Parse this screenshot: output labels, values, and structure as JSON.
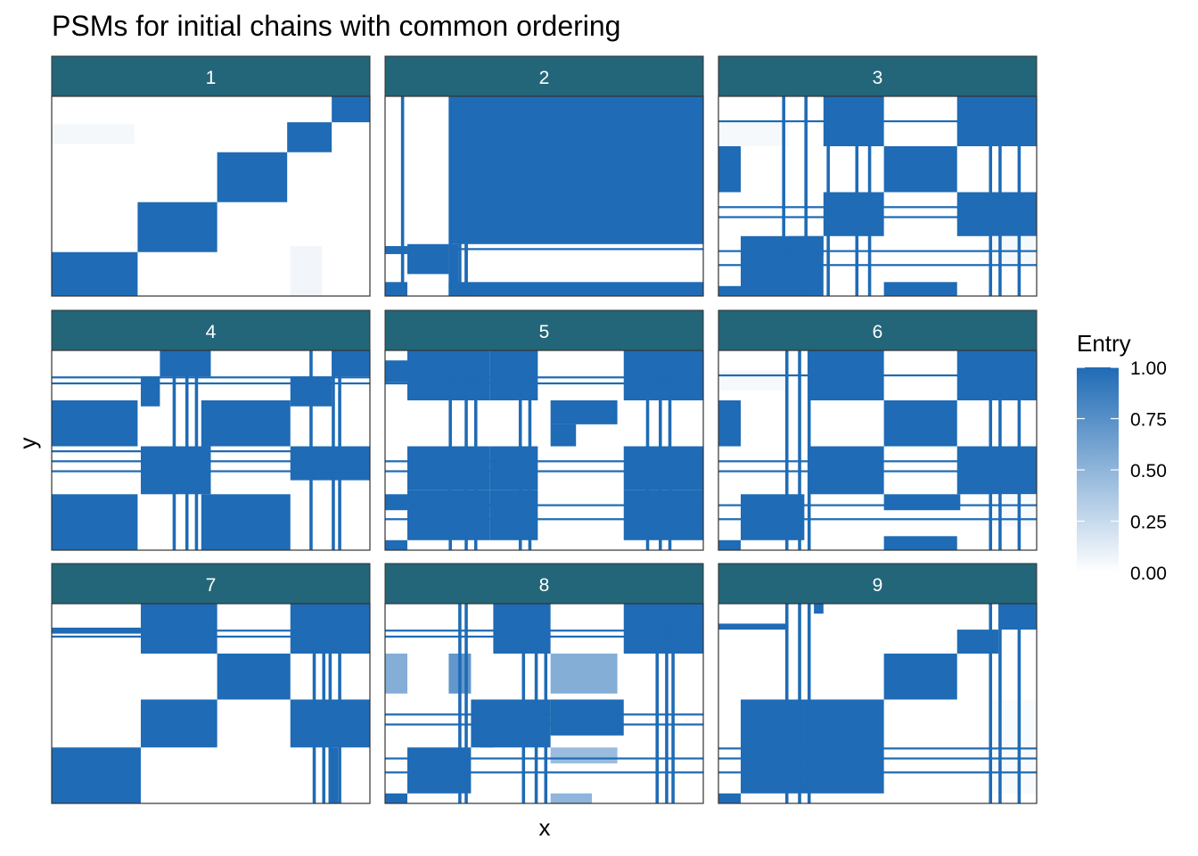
{
  "chart_data": {
    "type": "heatmap",
    "title": "PSMs for initial chains with common ordering",
    "xlabel": "x",
    "ylabel": "y",
    "legend": {
      "title": "Entry",
      "placement": "right",
      "ticks": [
        "0.00",
        "0.25",
        "0.50",
        "0.75",
        "1.00"
      ],
      "tick_values": [
        0,
        0.25,
        0.5,
        0.75,
        1
      ],
      "low_color": "#ffffff",
      "high_color": "#1f6bb5"
    },
    "strip_color": "#236679",
    "fill_low": "#ffffff",
    "fill_high": "#1f6bb5",
    "domain": [
      0,
      1
    ],
    "facet_grid": [
      3,
      3
    ],
    "facets": [
      {
        "label": "1",
        "blocks": [
          [
            0,
            0.78,
            0.27,
            1,
            1
          ],
          [
            0.27,
            0.53,
            0.52,
            0.78,
            1
          ],
          [
            0.52,
            0.28,
            0.74,
            0.53,
            1
          ],
          [
            0.74,
            0.13,
            0.88,
            0.28,
            1
          ],
          [
            0.88,
            0,
            1,
            0.13,
            1
          ],
          [
            0,
            0.14,
            0.26,
            0.24,
            0.05
          ],
          [
            0.75,
            0.75,
            0.85,
            1,
            0.06
          ]
        ]
      },
      {
        "label": "2",
        "blocks": [
          [
            0.07,
            0,
            1,
            0.74,
            1
          ],
          [
            0.07,
            0.76,
            1,
            0.77,
            1
          ],
          [
            0.07,
            0.93,
            1,
            1,
            1
          ],
          [
            0.07,
            0,
            0.2,
            1,
            0
          ],
          [
            0,
            0.75,
            0.07,
            0.79,
            1
          ],
          [
            0,
            0.93,
            0.07,
            1,
            1
          ],
          [
            0.07,
            0.74,
            0.2,
            0.89,
            1
          ],
          [
            0.2,
            0.74,
            0.23,
            1,
            1
          ],
          [
            0.25,
            0.74,
            0.26,
            1,
            1
          ]
        ]
      },
      {
        "label": "3",
        "blocks": [
          [
            0.33,
            0,
            0.52,
            0.25,
            1
          ],
          [
            0.75,
            0,
            1,
            0.25,
            1
          ],
          [
            0,
            0.25,
            0.07,
            0.48,
            1
          ],
          [
            0.52,
            0.25,
            0.75,
            0.48,
            1
          ],
          [
            0.33,
            0.48,
            0.52,
            0.7,
            1
          ],
          [
            0.75,
            0.48,
            1,
            0.7,
            1
          ],
          [
            0.07,
            0.7,
            0.33,
            1,
            1
          ],
          [
            0.52,
            0.93,
            0.75,
            1,
            1
          ],
          [
            0,
            0.95,
            0.07,
            1,
            1
          ],
          [
            0,
            0.12,
            0.22,
            0.25,
            0.04
          ],
          [
            0.22,
            0.7,
            0.33,
            0.8,
            1
          ],
          [
            0.85,
            0.7,
            1,
            0.85,
            0.04
          ]
        ]
      },
      {
        "label": "4",
        "blocks": [
          [
            0,
            0.25,
            0.27,
            0.48,
            1
          ],
          [
            0.47,
            0.25,
            0.75,
            0.48,
            1
          ],
          [
            0,
            0.72,
            0.27,
            1,
            1
          ],
          [
            0.47,
            0.72,
            0.75,
            1,
            1
          ],
          [
            0.34,
            0,
            0.5,
            0.13,
            1
          ],
          [
            0.88,
            0,
            1,
            0.13,
            1
          ],
          [
            0.28,
            0.13,
            0.34,
            0.28,
            1
          ],
          [
            0.75,
            0.13,
            0.88,
            0.28,
            1
          ],
          [
            0.28,
            0.48,
            0.5,
            0.72,
            1
          ],
          [
            0.75,
            0.48,
            1,
            0.65,
            1
          ]
        ]
      },
      {
        "label": "5",
        "blocks": [
          [
            0.07,
            0,
            0.33,
            0.25,
            1
          ],
          [
            0.33,
            0,
            0.48,
            0.25,
            1
          ],
          [
            0.75,
            0,
            1,
            0.25,
            1
          ],
          [
            0.07,
            0.48,
            0.33,
            0.7,
            1
          ],
          [
            0.33,
            0.48,
            0.48,
            0.7,
            1
          ],
          [
            0.75,
            0.48,
            1,
            0.7,
            1
          ],
          [
            0.07,
            0.7,
            0.33,
            0.95,
            1
          ],
          [
            0.33,
            0.7,
            0.48,
            0.95,
            1
          ],
          [
            0.75,
            0.7,
            1,
            0.95,
            1
          ],
          [
            0,
            0.95,
            0.07,
            1,
            1
          ],
          [
            0.52,
            0.25,
            0.73,
            0.37,
            1
          ],
          [
            0.52,
            0.37,
            0.6,
            0.48,
            1
          ],
          [
            0,
            0.05,
            0.07,
            0.16,
            1
          ],
          [
            0,
            0.72,
            0.07,
            0.8,
            1
          ]
        ]
      },
      {
        "label": "6",
        "blocks": [
          [
            0.28,
            0,
            0.52,
            0.25,
            1
          ],
          [
            0.75,
            0,
            1,
            0.25,
            1
          ],
          [
            0,
            0.25,
            0.07,
            0.48,
            1
          ],
          [
            0.52,
            0.25,
            0.75,
            0.48,
            1
          ],
          [
            0.28,
            0.48,
            0.52,
            0.72,
            1
          ],
          [
            0.75,
            0.48,
            1,
            0.72,
            1
          ],
          [
            0.07,
            0.72,
            0.27,
            0.95,
            1
          ],
          [
            0.52,
            0.93,
            0.75,
            1,
            1
          ],
          [
            0,
            0.95,
            0.07,
            1,
            1
          ],
          [
            0.52,
            0.72,
            0.76,
            0.8,
            1
          ],
          [
            0,
            0.1,
            0.22,
            0.2,
            0.04
          ],
          [
            0.85,
            0.72,
            1,
            0.88,
            0.03
          ]
        ]
      },
      {
        "label": "7",
        "blocks": [
          [
            0.28,
            0,
            0.52,
            0.25,
            1
          ],
          [
            0.75,
            0,
            1,
            0.25,
            1
          ],
          [
            0.52,
            0.25,
            0.75,
            0.48,
            1
          ],
          [
            0.28,
            0.48,
            0.52,
            0.72,
            1
          ],
          [
            0.75,
            0.48,
            1,
            0.72,
            1
          ],
          [
            0,
            0.72,
            0.28,
            1,
            1
          ],
          [
            0,
            0.12,
            0.28,
            0.15,
            1
          ],
          [
            0.87,
            0.72,
            0.9,
            1,
            1
          ]
        ]
      },
      {
        "label": "8",
        "blocks": [
          [
            0.34,
            0,
            0.52,
            0.25,
            1
          ],
          [
            0.75,
            0,
            1,
            0.25,
            1
          ],
          [
            0,
            0.25,
            0.07,
            0.45,
            0.55
          ],
          [
            0.52,
            0.25,
            0.73,
            0.45,
            0.55
          ],
          [
            0.27,
            0.48,
            0.52,
            0.72,
            1
          ],
          [
            0.52,
            0.48,
            0.75,
            0.66,
            1
          ],
          [
            0.07,
            0.72,
            0.27,
            0.95,
            1
          ],
          [
            0,
            0.95,
            0.07,
            1,
            1
          ],
          [
            0.52,
            0.95,
            0.65,
            1,
            0.5
          ],
          [
            0.52,
            0.72,
            0.73,
            0.8,
            0.45
          ],
          [
            0.3,
            0.58,
            0.34,
            0.72,
            1
          ],
          [
            0.2,
            0.25,
            0.27,
            0.45,
            0.7
          ]
        ]
      },
      {
        "label": "9",
        "blocks": [
          [
            0.07,
            0.48,
            0.52,
            0.95,
            1
          ],
          [
            0.52,
            0.25,
            0.75,
            0.48,
            1
          ],
          [
            0.75,
            0.13,
            0.88,
            0.25,
            1
          ],
          [
            0.88,
            0,
            1,
            0.13,
            1
          ],
          [
            0,
            0.95,
            0.07,
            1,
            1
          ],
          [
            0,
            0.1,
            0.22,
            0.13,
            1
          ],
          [
            0.85,
            0.48,
            1,
            0.95,
            0.03
          ],
          [
            0.3,
            0,
            0.33,
            0.05,
            1
          ]
        ]
      }
    ],
    "stripes": [
      {
        "facet": 2,
        "cols": [
          0.05,
          0.2,
          0.23,
          0.25
        ],
        "width": 0.01,
        "value": 1
      },
      {
        "facet": 3,
        "cols": [
          0.2,
          0.27,
          0.34,
          0.43,
          0.47,
          0.85,
          0.88,
          0.94
        ],
        "width": 0.01,
        "value": 1
      },
      {
        "facet": 3,
        "rows": [
          0.12,
          0.55,
          0.6,
          0.77,
          0.84
        ],
        "width": 0.01,
        "value": 1
      },
      {
        "facet": 4,
        "cols": [
          0.38,
          0.42,
          0.45,
          0.81,
          0.88,
          0.9
        ],
        "width": 0.01,
        "value": 1
      },
      {
        "facet": 4,
        "rows": [
          0.13,
          0.16,
          0.5,
          0.55,
          0.6
        ],
        "width": 0.01,
        "value": 1
      },
      {
        "facet": 5,
        "cols": [
          0.2,
          0.25,
          0.28,
          0.42,
          0.45,
          0.82,
          0.86,
          0.89
        ],
        "width": 0.01,
        "value": 1
      },
      {
        "facet": 5,
        "rows": [
          0.13,
          0.16,
          0.55,
          0.6,
          0.77,
          0.84
        ],
        "width": 0.01,
        "value": 1
      },
      {
        "facet": 6,
        "cols": [
          0.21,
          0.25,
          0.28,
          0.85,
          0.88,
          0.94
        ],
        "width": 0.01,
        "value": 1
      },
      {
        "facet": 6,
        "rows": [
          0.12,
          0.55,
          0.6,
          0.77,
          0.84
        ],
        "width": 0.01,
        "value": 1
      },
      {
        "facet": 7,
        "cols": [
          0.82,
          0.85,
          0.87,
          0.9
        ],
        "width": 0.01,
        "value": 1
      },
      {
        "facet": 7,
        "rows": [
          0.13,
          0.16
        ],
        "width": 0.01,
        "value": 1
      },
      {
        "facet": 8,
        "cols": [
          0.23,
          0.25,
          0.43,
          0.47,
          0.5,
          0.85,
          0.88,
          0.9
        ],
        "width": 0.01,
        "value": 1
      },
      {
        "facet": 8,
        "rows": [
          0.13,
          0.16,
          0.55,
          0.6,
          0.77,
          0.84
        ],
        "width": 0.01,
        "value": 1
      },
      {
        "facet": 9,
        "cols": [
          0.21,
          0.25,
          0.28,
          0.85,
          0.88,
          0.94
        ],
        "width": 0.01,
        "value": 1
      },
      {
        "facet": 9,
        "rows": [
          0.72,
          0.77,
          0.84
        ],
        "width": 0.01,
        "value": 1
      }
    ]
  }
}
